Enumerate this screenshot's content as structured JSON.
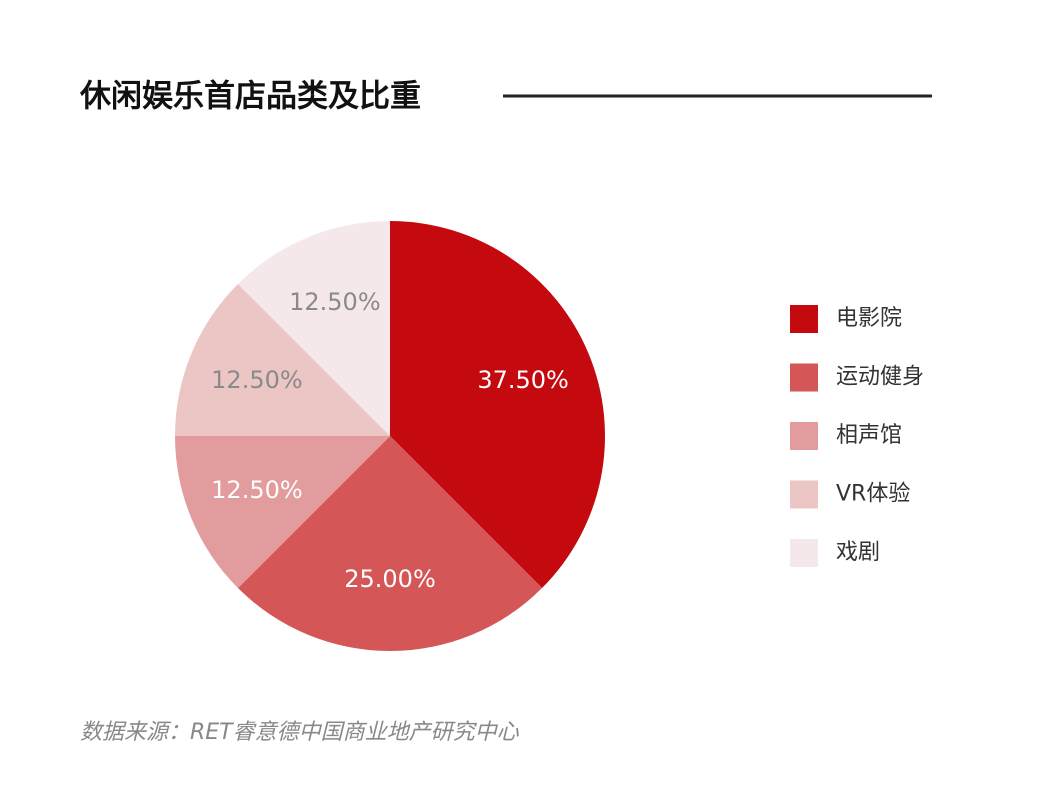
{
  "chart_data": {
    "type": "pie",
    "title": "休闲娱乐首店品类及比重",
    "categories": [
      "电影院",
      "运动健身",
      "相声馆",
      "VR体验",
      "戏剧"
    ],
    "values": [
      37.5,
      25,
      12.5,
      12.5,
      12.5
    ],
    "value_labels": [
      "37.50%",
      "25.00%",
      "12.50%",
      "12.50%",
      "12.50%"
    ],
    "colors": [
      "#c4090f",
      "#d45657",
      "#e29c9d",
      "#ecc5c5",
      "#f4e8ea"
    ],
    "source": "数据来源：RET睿意德中国商业地产研究中心"
  }
}
